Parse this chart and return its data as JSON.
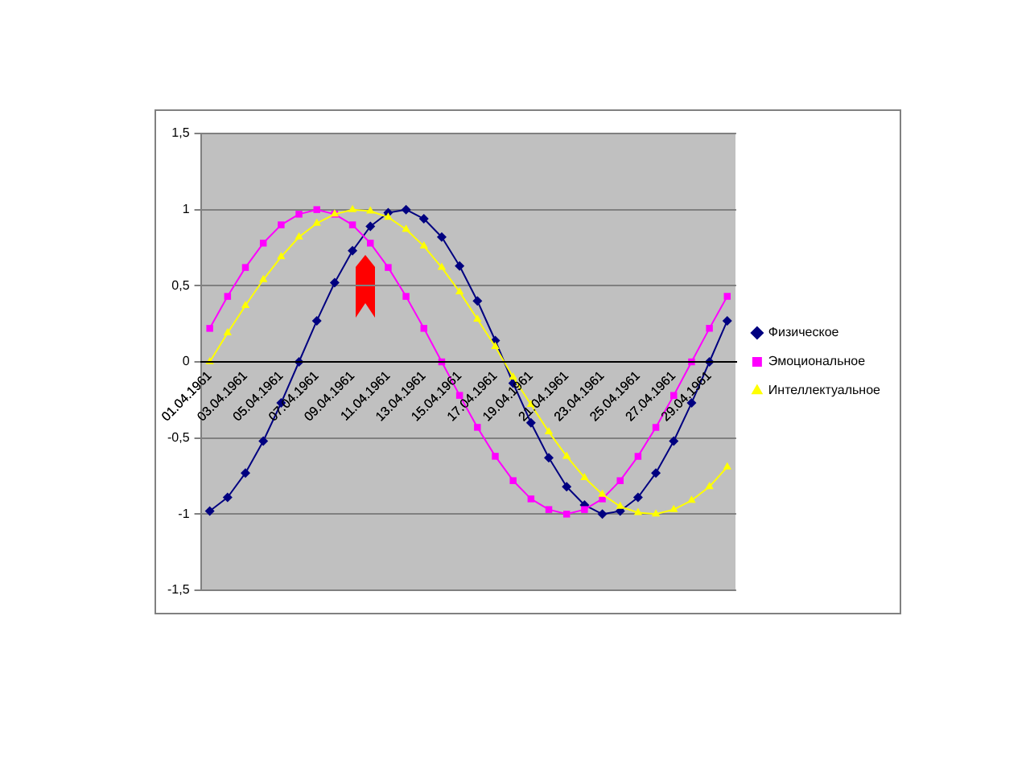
{
  "chart_data": {
    "type": "line",
    "categories": [
      "01.04.1961",
      null,
      "03.04.1961",
      null,
      "05.04.1961",
      null,
      "07.04.1961",
      null,
      "09.04.1961",
      null,
      "11.04.1961",
      null,
      "13.04.1961",
      null,
      "15.04.1961",
      null,
      "17.04.1961",
      null,
      "19.04.1961",
      null,
      "21.04.1961",
      null,
      "23.04.1961",
      null,
      "25.04.1961",
      null,
      "27.04.1961",
      null,
      "29.04.1961",
      null
    ],
    "series": [
      {
        "name": "Физическое",
        "color": "#000080",
        "marker": "diamond",
        "values": [
          -0.98,
          -0.89,
          -0.73,
          -0.52,
          -0.27,
          0,
          0.27,
          0.52,
          0.73,
          0.89,
          0.98,
          1,
          0.94,
          0.82,
          0.63,
          0.4,
          0.14,
          -0.14,
          -0.4,
          -0.63,
          -0.82,
          -0.94,
          -1,
          -0.98,
          -0.89,
          -0.73,
          -0.52,
          -0.27,
          0,
          0.27
        ]
      },
      {
        "name": "Эмоциональное",
        "color": "#ff00ff",
        "marker": "square",
        "values": [
          0.22,
          0.43,
          0.62,
          0.78,
          0.9,
          0.97,
          1,
          0.97,
          0.9,
          0.78,
          0.62,
          0.43,
          0.22,
          0,
          -0.22,
          -0.43,
          -0.62,
          -0.78,
          -0.9,
          -0.97,
          -1,
          -0.97,
          -0.9,
          -0.78,
          -0.62,
          -0.43,
          -0.22,
          0,
          0.22,
          0.43
        ]
      },
      {
        "name": "Интеллектуальное",
        "color": "#ffff00",
        "marker": "triangle",
        "values": [
          0,
          0.19,
          0.37,
          0.54,
          0.69,
          0.82,
          0.91,
          0.97,
          1,
          0.99,
          0.95,
          0.87,
          0.76,
          0.62,
          0.46,
          0.28,
          0.1,
          -0.1,
          -0.28,
          -0.46,
          -0.62,
          -0.76,
          -0.87,
          -0.95,
          -0.99,
          -1,
          -0.97,
          -0.91,
          -0.82,
          -0.69
        ]
      }
    ],
    "ylim": [
      -1.5,
      1.5
    ],
    "yticks": [
      {
        "value": -1.5,
        "label": "-1,5"
      },
      -1,
      {
        "value": -0.5,
        "label": "-0,5"
      },
      0,
      {
        "value": 0.5,
        "label": "0,5"
      },
      1,
      {
        "value": 1.5,
        "label": "1,5"
      }
    ],
    "grid": "y",
    "legend": "right",
    "line_style": "solid"
  }
}
